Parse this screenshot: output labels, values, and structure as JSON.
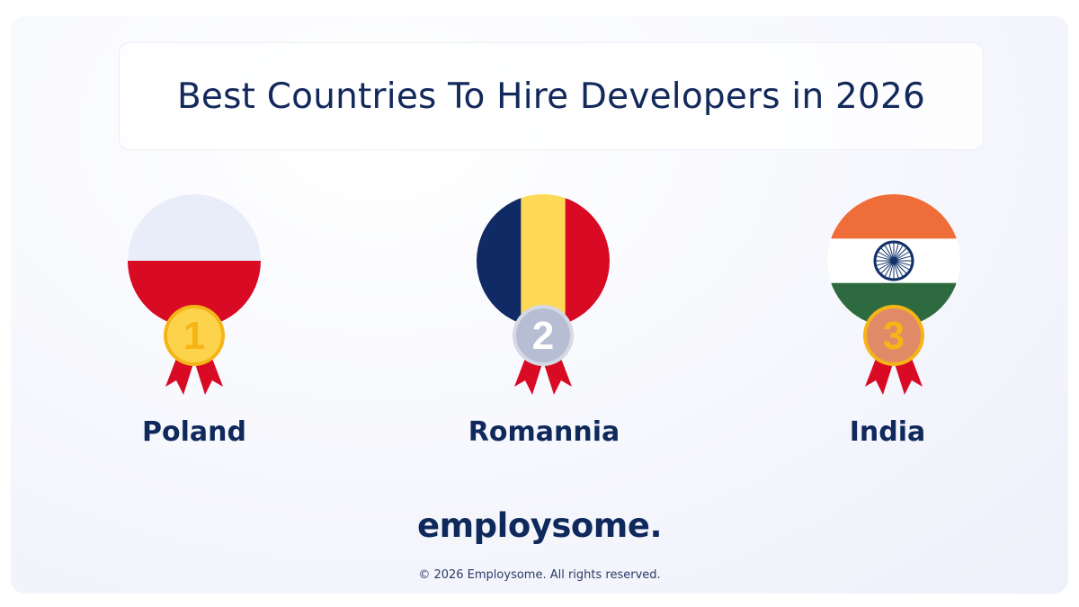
{
  "title": "Best Countries To Hire Developers in 2026",
  "countries": [
    {
      "name": "Poland",
      "rank": "1",
      "medal": "gold",
      "flag": "poland-flag",
      "colors": {
        "top": "#e9edf9",
        "bottom": "#d80a24",
        "medal_fill": "#fdd34c",
        "medal_ring": "#f6b517",
        "digit": "#f6b517"
      }
    },
    {
      "name": "Romannia",
      "rank": "2",
      "medal": "silver",
      "flag": "romania-flag",
      "colors": {
        "left": "#0f2a64",
        "middle": "#fdd955",
        "right": "#d80a24",
        "medal_fill": "#b7bdd2",
        "medal_ring": "#d5d9e6",
        "digit": "#ffffff"
      }
    },
    {
      "name": "India",
      "rank": "3",
      "medal": "bronze",
      "flag": "india-flag",
      "colors": {
        "top": "#ef6d38",
        "middle": "#ffffff",
        "bottom": "#2e6a3f",
        "chakra": "#12306a",
        "medal_fill": "#e08a68",
        "medal_ring": "#f6b517",
        "digit": "#f6b517"
      }
    }
  ],
  "ribbon_color": "#d80a24",
  "brand": {
    "logo": "employsome.",
    "copyright": "© 2026 Employsome. All rights reserved."
  }
}
